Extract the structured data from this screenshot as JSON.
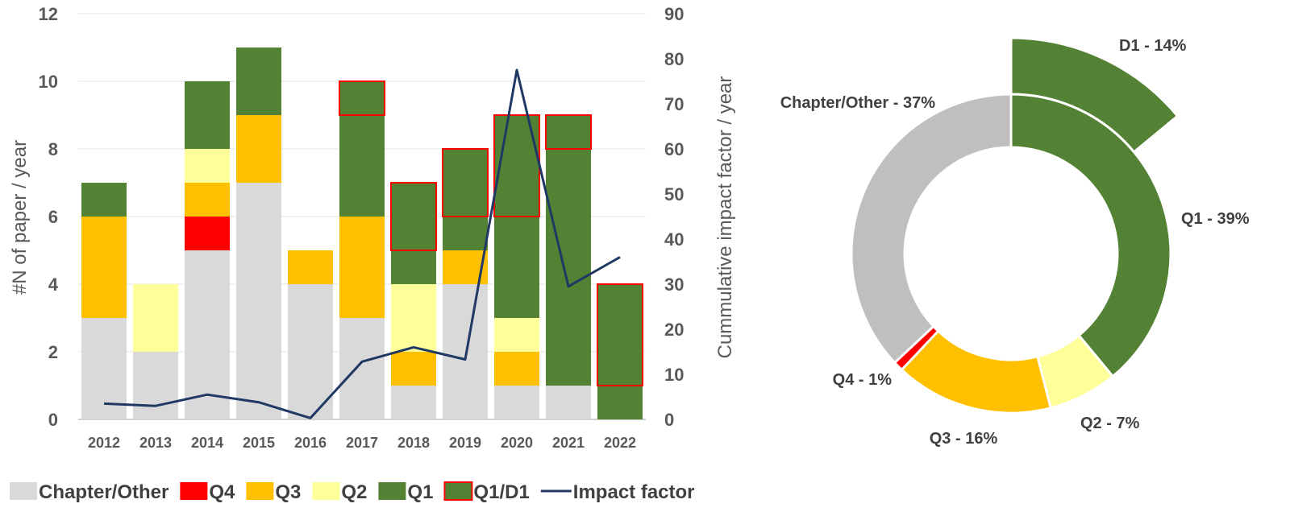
{
  "chart_data": [
    {
      "type": "bar",
      "subtype": "stacked bar with line on secondary axis",
      "categories": [
        "2012",
        "2013",
        "2014",
        "2015",
        "2016",
        "2017",
        "2018",
        "2019",
        "2020",
        "2021",
        "2022"
      ],
      "series": [
        {
          "name": "Chapter/Other",
          "color": "#d9d9d9",
          "values": [
            3,
            2,
            5,
            7,
            4,
            3,
            1,
            4,
            1,
            1,
            0
          ]
        },
        {
          "name": "Q4",
          "color": "#ff0000",
          "values": [
            0,
            0,
            1,
            0,
            0,
            0,
            0,
            0,
            0,
            0,
            0
          ]
        },
        {
          "name": "Q3",
          "color": "#ffc000",
          "values": [
            3,
            0,
            1,
            2,
            1,
            3,
            1,
            1,
            1,
            0,
            0
          ]
        },
        {
          "name": "Q2",
          "color": "#ffff99",
          "values": [
            0,
            2,
            1,
            0,
            0,
            0,
            2,
            0,
            1,
            0,
            0
          ]
        },
        {
          "name": "Q1",
          "color": "#548235",
          "values": [
            1,
            0,
            2,
            2,
            0,
            3,
            1,
            1,
            3,
            7,
            1
          ]
        },
        {
          "name": "Q1/D1",
          "color": "#548235",
          "outline": "#ff0000",
          "values": [
            0,
            0,
            0,
            0,
            0,
            1,
            2,
            2,
            3,
            1,
            3
          ]
        }
      ],
      "line": {
        "name": "Impact factor",
        "color": "#1f3864",
        "values": [
          3.5,
          3,
          5.5,
          3.8,
          0.3,
          12.8,
          16,
          13.3,
          77.5,
          29.5,
          36
        ]
      },
      "ylabel": "#N of paper / year",
      "ylim": [
        0,
        12
      ],
      "yticks": [
        0,
        2,
        4,
        6,
        8,
        10,
        12
      ],
      "y2label": "Cummulative impact factor / year",
      "y2lim": [
        0,
        90
      ],
      "y2ticks": [
        0,
        10,
        20,
        30,
        40,
        50,
        60,
        70,
        80,
        90
      ],
      "grid": true,
      "legend": "bottom"
    },
    {
      "type": "pie",
      "subtype": "donut",
      "slices": [
        {
          "label": "Q1 - 39%",
          "value": 39,
          "color": "#548235"
        },
        {
          "label": "Q2 - 7%",
          "value": 7,
          "color": "#ffff99"
        },
        {
          "label": "Q3 - 16%",
          "value": 16,
          "color": "#ffc000"
        },
        {
          "label": "Q4 - 1%",
          "value": 1,
          "color": "#ff0000"
        },
        {
          "label": "Chapter/Other - 37%",
          "value": 37,
          "color": "#bfbfbf"
        }
      ],
      "outer_slice": {
        "label": "D1 - 14%",
        "value": 14,
        "color": "#548235"
      }
    }
  ]
}
